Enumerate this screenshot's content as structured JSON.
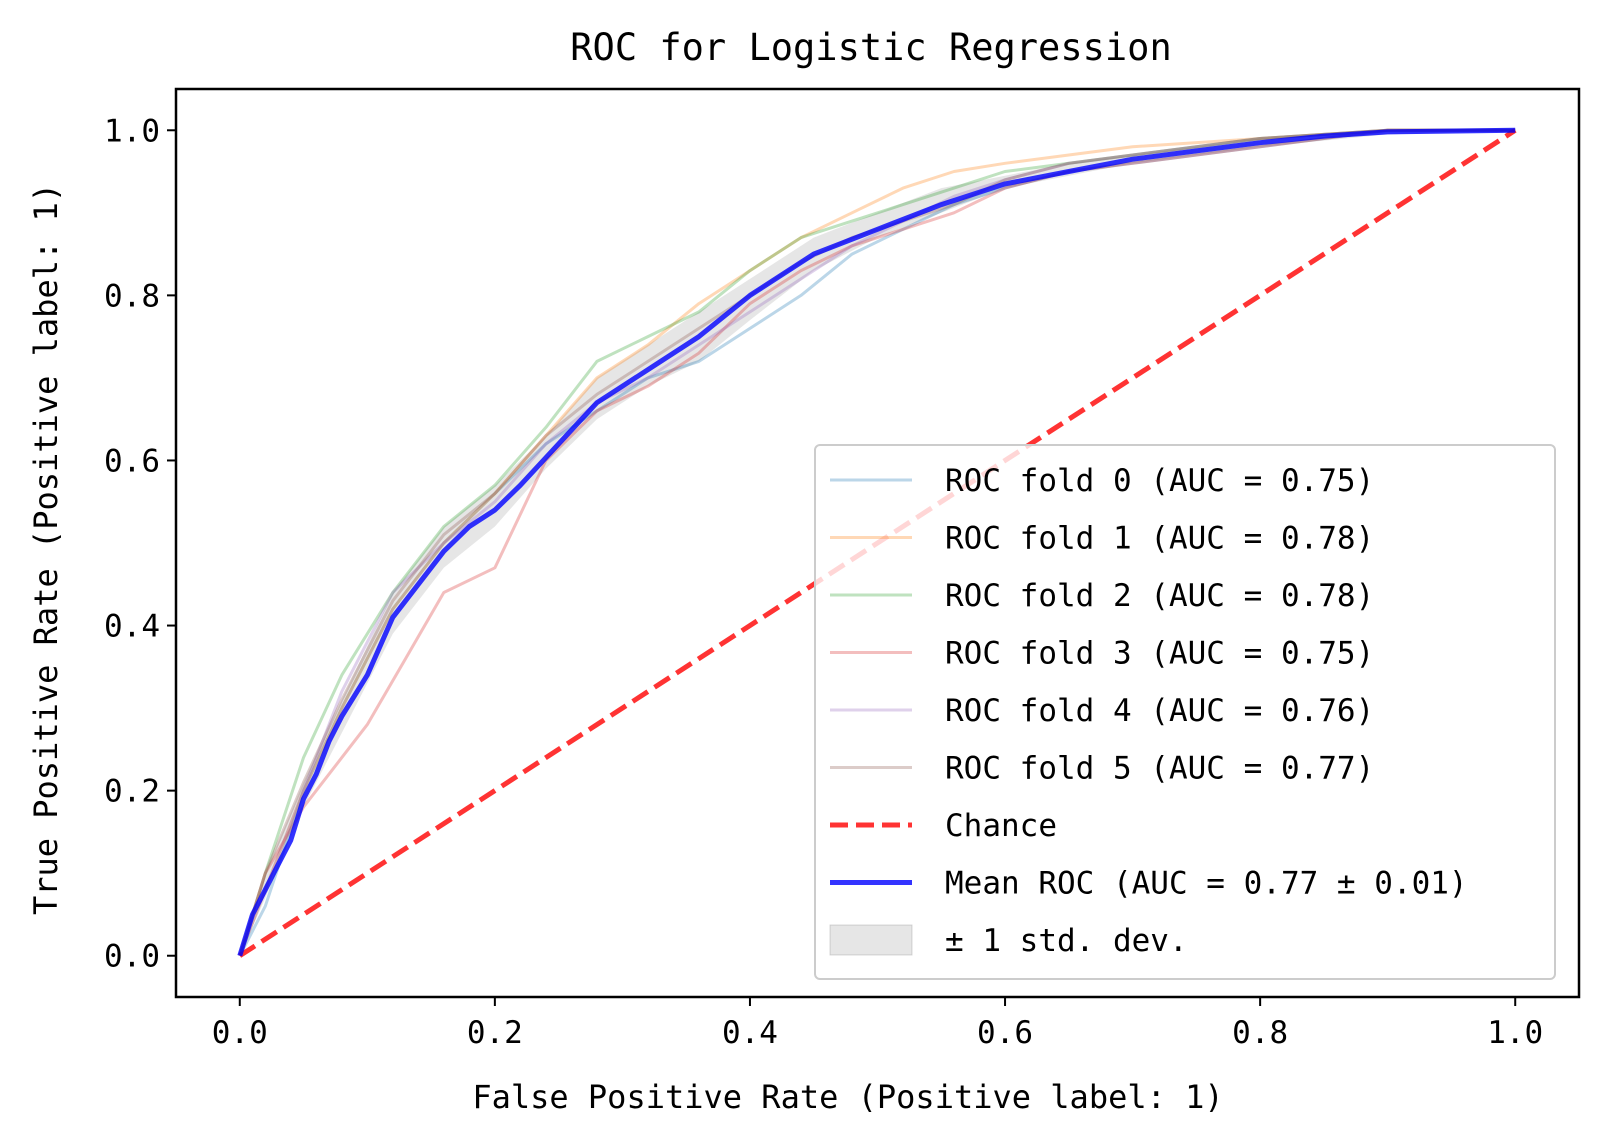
{
  "chart_data": {
    "type": "line",
    "title": "ROC for Logistic Regression",
    "xlabel": "False Positive Rate (Positive label: 1)",
    "ylabel": "True Positive Rate (Positive label: 1)",
    "xlim": [
      -0.05,
      1.05
    ],
    "ylim": [
      -0.05,
      1.05
    ],
    "xticks": [
      "0.0",
      "0.2",
      "0.4",
      "0.6",
      "0.8",
      "1.0"
    ],
    "yticks": [
      "0.0",
      "0.2",
      "0.4",
      "0.6",
      "0.8",
      "1.0"
    ],
    "grid": false,
    "legend_position": "lower-right",
    "series": [
      {
        "name": "ROC fold 0 (AUC = 0.75)",
        "color": "#1f77b4",
        "opacity": 0.3,
        "width": 3,
        "dash": false,
        "x": [
          0,
          0.02,
          0.05,
          0.08,
          0.12,
          0.16,
          0.2,
          0.24,
          0.28,
          0.32,
          0.36,
          0.4,
          0.44,
          0.48,
          0.52,
          0.56,
          0.6,
          0.65,
          0.7,
          0.8,
          0.9,
          1
        ],
        "y": [
          0,
          0.06,
          0.2,
          0.3,
          0.42,
          0.5,
          0.56,
          0.62,
          0.66,
          0.7,
          0.72,
          0.76,
          0.8,
          0.85,
          0.88,
          0.91,
          0.93,
          0.95,
          0.96,
          0.98,
          1,
          1
        ]
      },
      {
        "name": "ROC fold 1 (AUC = 0.78)",
        "color": "#ff7f0e",
        "opacity": 0.3,
        "width": 3,
        "dash": false,
        "x": [
          0,
          0.02,
          0.05,
          0.08,
          0.12,
          0.16,
          0.2,
          0.24,
          0.28,
          0.32,
          0.36,
          0.4,
          0.44,
          0.48,
          0.52,
          0.56,
          0.6,
          0.65,
          0.7,
          0.8,
          0.9,
          1
        ],
        "y": [
          0,
          0.08,
          0.2,
          0.3,
          0.42,
          0.5,
          0.56,
          0.63,
          0.7,
          0.74,
          0.79,
          0.83,
          0.87,
          0.9,
          0.93,
          0.95,
          0.96,
          0.97,
          0.98,
          0.99,
          1,
          1
        ]
      },
      {
        "name": "ROC fold 2 (AUC = 0.78)",
        "color": "#2ca02c",
        "opacity": 0.3,
        "width": 3,
        "dash": false,
        "x": [
          0,
          0.02,
          0.05,
          0.08,
          0.12,
          0.16,
          0.2,
          0.24,
          0.28,
          0.32,
          0.36,
          0.4,
          0.44,
          0.48,
          0.52,
          0.56,
          0.6,
          0.65,
          0.7,
          0.8,
          0.9,
          1
        ],
        "y": [
          0,
          0.1,
          0.24,
          0.34,
          0.44,
          0.52,
          0.57,
          0.64,
          0.72,
          0.75,
          0.78,
          0.83,
          0.87,
          0.89,
          0.91,
          0.93,
          0.95,
          0.96,
          0.97,
          0.99,
          1,
          1
        ]
      },
      {
        "name": "ROC fold 3 (AUC = 0.75)",
        "color": "#d62728",
        "opacity": 0.3,
        "width": 3,
        "dash": false,
        "x": [
          0,
          0.02,
          0.05,
          0.08,
          0.1,
          0.13,
          0.16,
          0.2,
          0.24,
          0.28,
          0.32,
          0.36,
          0.4,
          0.44,
          0.48,
          0.52,
          0.56,
          0.6,
          0.65,
          0.7,
          0.8,
          0.9,
          1
        ],
        "y": [
          0,
          0.1,
          0.18,
          0.24,
          0.28,
          0.36,
          0.44,
          0.47,
          0.6,
          0.66,
          0.69,
          0.73,
          0.79,
          0.83,
          0.86,
          0.88,
          0.9,
          0.93,
          0.95,
          0.96,
          0.98,
          1,
          1
        ]
      },
      {
        "name": "ROC fold 4 (AUC = 0.76)",
        "color": "#9467bd",
        "opacity": 0.3,
        "width": 3,
        "dash": false,
        "x": [
          0,
          0.02,
          0.05,
          0.08,
          0.12,
          0.16,
          0.2,
          0.24,
          0.28,
          0.32,
          0.36,
          0.4,
          0.44,
          0.48,
          0.52,
          0.56,
          0.6,
          0.65,
          0.7,
          0.8,
          0.9,
          1
        ],
        "y": [
          0,
          0.08,
          0.2,
          0.32,
          0.44,
          0.5,
          0.55,
          0.62,
          0.67,
          0.7,
          0.74,
          0.78,
          0.82,
          0.86,
          0.89,
          0.92,
          0.94,
          0.96,
          0.97,
          0.99,
          1,
          1
        ]
      },
      {
        "name": "ROC fold 5 (AUC = 0.77)",
        "color": "#8c564b",
        "opacity": 0.3,
        "width": 3,
        "dash": false,
        "x": [
          0,
          0.02,
          0.05,
          0.08,
          0.12,
          0.16,
          0.2,
          0.24,
          0.28,
          0.32,
          0.36,
          0.4,
          0.44,
          0.48,
          0.52,
          0.56,
          0.6,
          0.65,
          0.7,
          0.8,
          0.9,
          1
        ],
        "y": [
          0,
          0.1,
          0.21,
          0.31,
          0.43,
          0.51,
          0.56,
          0.63,
          0.68,
          0.72,
          0.76,
          0.8,
          0.84,
          0.87,
          0.89,
          0.91,
          0.94,
          0.96,
          0.97,
          0.99,
          1,
          1
        ]
      },
      {
        "name": "Chance",
        "color": "#ff0000",
        "opacity": 0.8,
        "width": 5,
        "dash": true,
        "x": [
          0,
          1
        ],
        "y": [
          0,
          1
        ]
      },
      {
        "name": "Mean ROC (AUC = 0.77 ± 0.01)",
        "color": "#0000ff",
        "opacity": 0.8,
        "width": 5,
        "dash": false,
        "x": [
          0,
          0.01,
          0.02,
          0.03,
          0.04,
          0.05,
          0.06,
          0.07,
          0.08,
          0.1,
          0.12,
          0.14,
          0.16,
          0.18,
          0.2,
          0.22,
          0.25,
          0.28,
          0.3,
          0.33,
          0.36,
          0.4,
          0.45,
          0.5,
          0.55,
          0.6,
          0.65,
          0.7,
          0.75,
          0.8,
          0.85,
          0.9,
          1
        ],
        "y": [
          0,
          0.05,
          0.08,
          0.11,
          0.14,
          0.19,
          0.22,
          0.26,
          0.29,
          0.34,
          0.41,
          0.45,
          0.49,
          0.52,
          0.54,
          0.57,
          0.62,
          0.67,
          0.69,
          0.72,
          0.75,
          0.8,
          0.85,
          0.88,
          0.91,
          0.935,
          0.95,
          0.965,
          0.975,
          0.985,
          0.993,
          0.998,
          1.0
        ]
      }
    ],
    "std_band": {
      "name": "± 1 std. dev.",
      "color": "#808080",
      "opacity": 0.2,
      "x": [
        0,
        0.02,
        0.05,
        0.08,
        0.12,
        0.16,
        0.2,
        0.24,
        0.28,
        0.32,
        0.36,
        0.4,
        0.45,
        0.5,
        0.55,
        0.6,
        0.65,
        0.7,
        0.8,
        0.9,
        1
      ],
      "lower": [
        0,
        0.07,
        0.18,
        0.27,
        0.39,
        0.47,
        0.52,
        0.59,
        0.65,
        0.69,
        0.72,
        0.77,
        0.83,
        0.87,
        0.9,
        0.93,
        0.945,
        0.96,
        0.98,
        0.995,
        1
      ],
      "upper": [
        0,
        0.1,
        0.21,
        0.31,
        0.44,
        0.52,
        0.57,
        0.63,
        0.7,
        0.74,
        0.78,
        0.82,
        0.87,
        0.9,
        0.93,
        0.945,
        0.96,
        0.97,
        0.99,
        1,
        1
      ]
    }
  }
}
